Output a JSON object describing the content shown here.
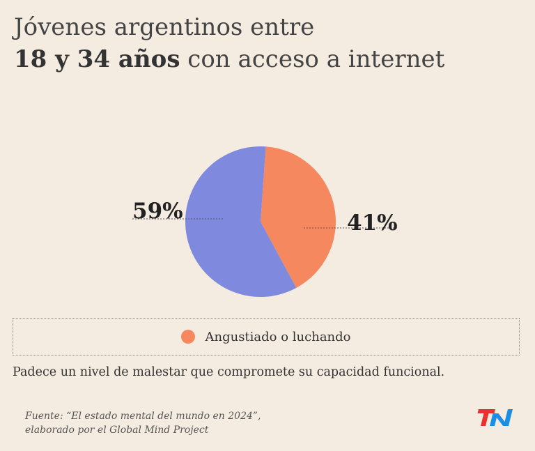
{
  "header": {
    "title_line1": "Jóvenes argentinos entre",
    "title_line2_bold": "18 y 34 años",
    "title_line2_rest": " con acceso a internet"
  },
  "chart_data": {
    "type": "pie",
    "slices": [
      {
        "name": "Angustiado o luchando",
        "value": 41,
        "label": "41%",
        "color": "#f5885f"
      },
      {
        "value": 59,
        "label": "59%",
        "color": "#7f8ade"
      }
    ]
  },
  "legend": {
    "items": [
      {
        "label": "Angustiado o luchando",
        "color": "#f5885f"
      }
    ]
  },
  "note": "Padece un nivel de malestar que compromete su capacidad funcional.",
  "source": {
    "line1": "Fuente: “El estado mental del mundo en 2024”,",
    "line2": "elaborado por el Global Mind Project"
  },
  "logo": {
    "text": "TN",
    "icon": "tn-logo-icon",
    "color_t": "#e8322f",
    "color_n": "#1a8fe3"
  }
}
